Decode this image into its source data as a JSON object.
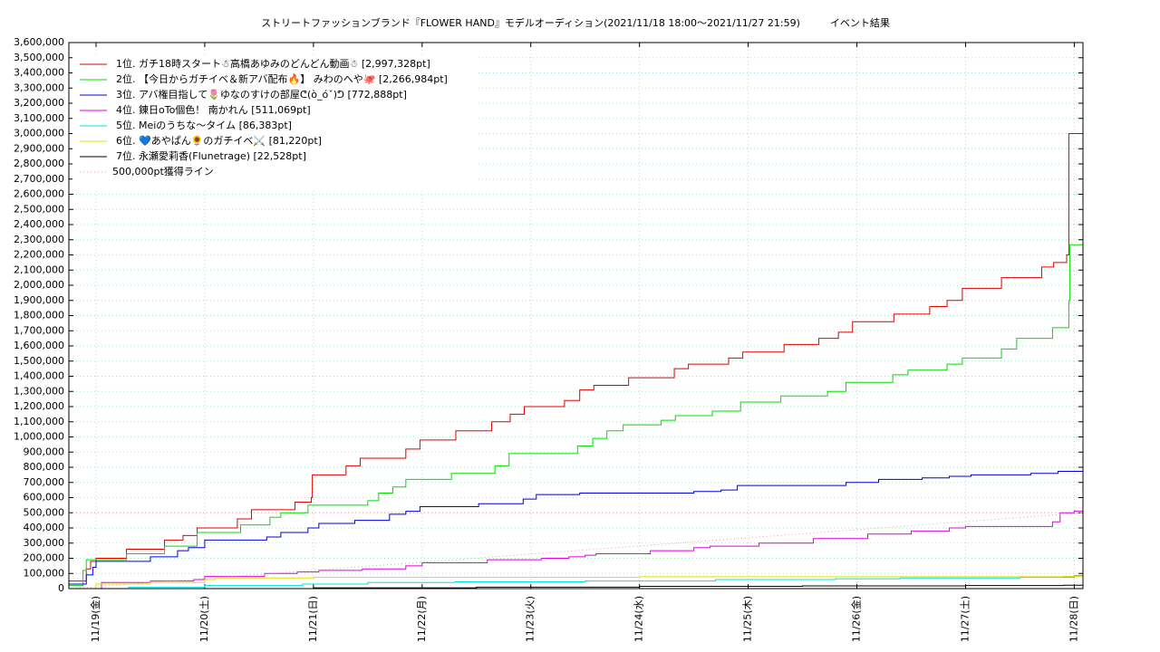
{
  "chart_data": {
    "type": "line",
    "step": true,
    "title": "ストリートファッションブランド『FLOWER HAND』モデルオーディション(2021/11/18 18:00〜2021/11/27 21:59)　　　イベント結果",
    "xlim": [
      18.75,
      28.08
    ],
    "xticks": [
      {
        "value": 19,
        "label": "11/19(金)"
      },
      {
        "value": 20,
        "label": "11/20(土)"
      },
      {
        "value": 21,
        "label": "11/21(日)"
      },
      {
        "value": 22,
        "label": "11/22(月)"
      },
      {
        "value": 23,
        "label": "11/23(火)"
      },
      {
        "value": 24,
        "label": "11/24(水)"
      },
      {
        "value": 25,
        "label": "11/25(木)"
      },
      {
        "value": 26,
        "label": "11/26(金)"
      },
      {
        "value": 27,
        "label": "11/27(土)"
      },
      {
        "value": 28,
        "label": "11/28(日)"
      }
    ],
    "ylim": [
      0,
      3600000
    ],
    "yticks": [
      0,
      {
        "value": 100000,
        "label": "100,000"
      },
      {
        "value": 200000,
        "label": "200,000"
      },
      {
        "value": 300000,
        "label": "300,000"
      },
      {
        "value": 400000,
        "label": "400,000"
      },
      {
        "value": 500000,
        "label": "500,000"
      },
      {
        "value": 600000,
        "label": "600,000"
      },
      {
        "value": 700000,
        "label": "700,000"
      },
      {
        "value": 800000,
        "label": "800,000"
      },
      {
        "value": 900000,
        "label": "900,000"
      },
      {
        "value": 1000000,
        "label": "1,000,000"
      },
      {
        "value": 1100000,
        "label": "1,100,000"
      },
      {
        "value": 1200000,
        "label": "1,200,000"
      },
      {
        "value": 1300000,
        "label": "1,300,000"
      },
      {
        "value": 1400000,
        "label": "1,400,000"
      },
      {
        "value": 1500000,
        "label": "1,500,000"
      },
      {
        "value": 1600000,
        "label": "1,600,000"
      },
      {
        "value": 1700000,
        "label": "1,700,000"
      },
      {
        "value": 1800000,
        "label": "1,800,000"
      },
      {
        "value": 1900000,
        "label": "1,900,000"
      },
      {
        "value": 2000000,
        "label": "2,000,000"
      },
      {
        "value": 2100000,
        "label": "2,100,000"
      },
      {
        "value": 2200000,
        "label": "2,200,000"
      },
      {
        "value": 2300000,
        "label": "2,300,000"
      },
      {
        "value": 2400000,
        "label": "2,400,000"
      },
      {
        "value": 2500000,
        "label": "2,500,000"
      },
      {
        "value": 2600000,
        "label": "2,600,000"
      },
      {
        "value": 2700000,
        "label": "2,700,000"
      },
      {
        "value": 2800000,
        "label": "2,800,000"
      },
      {
        "value": 2900000,
        "label": "2,900,000"
      },
      {
        "value": 3000000,
        "label": "3,000,000"
      },
      {
        "value": 3100000,
        "label": "3,100,000"
      },
      {
        "value": 3200000,
        "label": "3,200,000"
      },
      {
        "value": 3300000,
        "label": "3,300,000"
      },
      {
        "value": 3400000,
        "label": "3,400,000"
      },
      {
        "value": 3500000,
        "label": "3,500,000"
      },
      {
        "value": 3600000,
        "label": "3,600,000"
      }
    ],
    "grid": true,
    "grid_color": "#a8e6c8",
    "legend": "upper left",
    "hline": 500000,
    "series": [
      {
        "name": "1位. ガチ18時スタート☃高橋あゆみのどんどん動画☃ [2,997,328pt]",
        "color": "#e00000",
        "x": [
          18.75,
          18.91,
          18.95,
          19.0,
          19.28,
          19.63,
          19.8,
          19.93,
          20.3,
          20.43,
          20.83,
          20.98,
          20.99,
          21.3,
          21.43,
          21.85,
          21.98,
          22.31,
          22.64,
          22.81,
          22.94,
          23.31,
          23.45,
          23.58,
          23.9,
          24.32,
          24.45,
          24.82,
          24.95,
          25.33,
          25.65,
          25.83,
          25.96,
          26.34,
          26.67,
          26.83,
          26.97,
          27.33,
          27.7,
          27.81,
          27.93,
          27.95,
          28.08
        ],
        "values": [
          50000,
          130000,
          180000,
          200000,
          260000,
          320000,
          350000,
          400000,
          460000,
          520000,
          570000,
          600000,
          750000,
          810000,
          860000,
          920000,
          980000,
          1040000,
          1100000,
          1150000,
          1200000,
          1240000,
          1310000,
          1340000,
          1390000,
          1450000,
          1480000,
          1520000,
          1560000,
          1610000,
          1650000,
          1690000,
          1760000,
          1810000,
          1860000,
          1900000,
          1980000,
          2050000,
          2120000,
          2150000,
          2200000,
          3000000,
          2997328
        ]
      },
      {
        "name": "2位. 【今日からガチイベ＆新アバ配布🔥】 みわのへや🐙 [2,266,984pt]",
        "color": "#00e000",
        "x": [
          18.75,
          18.88,
          18.91,
          19.28,
          19.63,
          19.93,
          20.33,
          20.6,
          20.7,
          20.95,
          21.5,
          21.6,
          21.73,
          21.85,
          22.27,
          22.67,
          22.8,
          23.43,
          23.57,
          23.7,
          23.85,
          24.2,
          24.33,
          24.67,
          24.93,
          25.3,
          25.73,
          25.9,
          26.33,
          26.47,
          26.83,
          26.97,
          27.33,
          27.47,
          27.8,
          27.95,
          27.96,
          28.08
        ],
        "values": [
          20000,
          120000,
          190000,
          230000,
          280000,
          370000,
          420000,
          470000,
          500000,
          550000,
          580000,
          630000,
          670000,
          720000,
          760000,
          810000,
          890000,
          940000,
          990000,
          1040000,
          1080000,
          1110000,
          1140000,
          1170000,
          1230000,
          1270000,
          1300000,
          1360000,
          1410000,
          1440000,
          1480000,
          1520000,
          1580000,
          1650000,
          1720000,
          1900000,
          2266984,
          2266984
        ]
      },
      {
        "name": "3位. アバ権目指して🌷ゆなのすけの部屋ᕦ(ò_óˇ)ᕤ [772,888pt]",
        "color": "#0000e0",
        "x": [
          18.75,
          18.91,
          18.97,
          19.0,
          19.5,
          19.75,
          19.85,
          20.0,
          20.57,
          20.7,
          20.95,
          21.05,
          21.38,
          21.7,
          21.85,
          21.98,
          22.52,
          22.93,
          23.05,
          23.45,
          24.5,
          24.75,
          24.9,
          25.9,
          26.2,
          26.6,
          26.85,
          27.05,
          27.6,
          27.85,
          28.08
        ],
        "values": [
          30000,
          90000,
          140000,
          180000,
          210000,
          250000,
          270000,
          320000,
          340000,
          370000,
          400000,
          430000,
          450000,
          490000,
          510000,
          540000,
          560000,
          590000,
          620000,
          630000,
          640000,
          650000,
          680000,
          700000,
          720000,
          730000,
          740000,
          750000,
          760000,
          772888,
          772888
        ]
      },
      {
        "name": "4位. 錬日oTo個色！ 南かれん [511,069pt]",
        "color": "#e000e0",
        "x": [
          18.75,
          19.05,
          19.5,
          19.9,
          20.0,
          20.55,
          20.85,
          21.05,
          21.45,
          21.85,
          22.0,
          22.6,
          23.1,
          23.35,
          23.5,
          23.6,
          24.1,
          24.5,
          24.65,
          25.1,
          25.6,
          26.1,
          26.5,
          26.85,
          27.0,
          27.8,
          27.87,
          28.0,
          28.08
        ],
        "values": [
          0,
          40000,
          50000,
          60000,
          80000,
          100000,
          110000,
          120000,
          130000,
          150000,
          170000,
          190000,
          200000,
          210000,
          220000,
          230000,
          250000,
          270000,
          280000,
          300000,
          330000,
          360000,
          380000,
          400000,
          410000,
          440000,
          500000,
          511069,
          511069
        ]
      },
      {
        "name": "5位. Meiのうちな〜タイム [86,383pt]",
        "color": "#00e0e0",
        "x": [
          18.75,
          19.3,
          20.0,
          20.9,
          21.5,
          22.3,
          23.5,
          24.7,
          25.8,
          26.4,
          27.5,
          28.0,
          28.08
        ],
        "values": [
          0,
          10000,
          20000,
          30000,
          40000,
          45000,
          50000,
          60000,
          65000,
          70000,
          75000,
          86383,
          86383
        ]
      },
      {
        "name": "6位. 💙あやぱん🌻のガチイベ⚔️ [81,220pt]",
        "color": "#e0e000",
        "x": [
          18.75,
          19.0,
          19.5,
          20.0,
          20.1,
          21.0,
          24.0,
          27.9,
          28.08
        ],
        "values": [
          0,
          30000,
          40000,
          60000,
          70000,
          75000,
          78000,
          81220,
          81220
        ]
      },
      {
        "name": "7位. 永瀬愛莉香(Flunetrage) [22,528pt]",
        "color": "#000000",
        "x": [
          18.75,
          21.0,
          22.5,
          24.0,
          25.5,
          27.0,
          27.9,
          28.08
        ],
        "values": [
          0,
          5000,
          10000,
          15000,
          18000,
          20000,
          22528,
          22528
        ]
      },
      {
        "name": "500,000pt獲得ライン",
        "color": "#e0a0a0",
        "dotted": true,
        "x": [
          18.75,
          28.08
        ],
        "values": [
          0,
          500000
        ]
      }
    ]
  }
}
